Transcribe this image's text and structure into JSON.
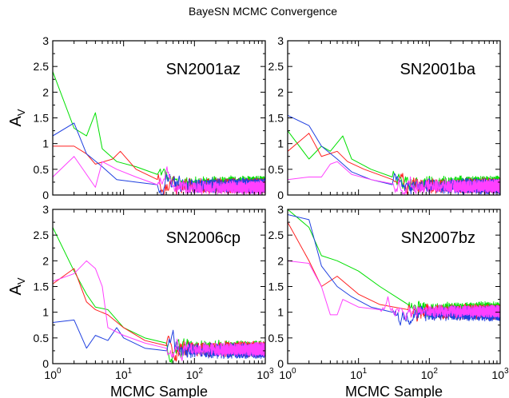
{
  "chart_data": {
    "type": "line",
    "title": "BayeSN MCMC Convergence",
    "xlabel": "MCMC Sample",
    "ylabel": "A",
    "ylabel_subscript": "V",
    "x_scale": "log",
    "xlim": [
      1,
      1000
    ],
    "x_ticks": [
      {
        "value": 1,
        "base": "10",
        "exp": "0"
      },
      {
        "value": 10,
        "base": "10",
        "exp": "1"
      },
      {
        "value": 100,
        "base": "10",
        "exp": "2"
      },
      {
        "value": 1000,
        "base": "10",
        "exp": "3"
      }
    ],
    "grid": false,
    "legend": "none",
    "series_colors": [
      "#00e000",
      "#ff2020",
      "#2040e0",
      "#ff40ff"
    ],
    "panels": [
      {
        "label": "SN2001az",
        "ylim": [
          0,
          3
        ],
        "y_ticks": [
          "0",
          "0.5",
          "1",
          "1.5",
          "2",
          "2.5",
          "3"
        ],
        "series": [
          {
            "color": "#00e000",
            "start": [
              [
                1,
                2.4
              ],
              [
                2,
                1.3
              ],
              [
                3,
                1.15
              ],
              [
                4,
                1.6
              ],
              [
                5,
                0.9
              ],
              [
                8,
                0.65
              ],
              [
                15,
                0.55
              ],
              [
                30,
                0.4
              ]
            ],
            "level": 0.22,
            "noise": 0.1
          },
          {
            "color": "#ff2020",
            "start": [
              [
                1,
                0.95
              ],
              [
                2,
                0.95
              ],
              [
                3,
                0.8
              ],
              [
                4,
                0.6
              ],
              [
                7,
                0.7
              ],
              [
                9,
                0.85
              ],
              [
                15,
                0.5
              ],
              [
                30,
                0.3
              ]
            ],
            "level": 0.18,
            "noise": 0.1
          },
          {
            "color": "#2040e0",
            "start": [
              [
                1,
                1.15
              ],
              [
                2,
                1.4
              ],
              [
                3,
                0.8
              ],
              [
                5,
                0.55
              ],
              [
                8,
                0.3
              ],
              [
                15,
                0.25
              ],
              [
                30,
                0.2
              ]
            ],
            "level": 0.18,
            "noise": 0.1
          },
          {
            "color": "#ff40ff",
            "start": [
              [
                1,
                0.35
              ],
              [
                2,
                0.75
              ],
              [
                3,
                0.4
              ],
              [
                4,
                0.15
              ],
              [
                5,
                0.65
              ],
              [
                8,
                0.5
              ],
              [
                15,
                0.35
              ],
              [
                30,
                0.2
              ]
            ],
            "level": 0.15,
            "noise": 0.09
          }
        ]
      },
      {
        "label": "SN2001ba",
        "ylim": [
          0,
          3
        ],
        "y_ticks": [
          "0",
          "0.5",
          "1",
          "1.5",
          "2",
          "2.5",
          "3"
        ],
        "series": [
          {
            "color": "#00e000",
            "start": [
              [
                1,
                1.25
              ],
              [
                2,
                0.7
              ],
              [
                3,
                0.95
              ],
              [
                4,
                0.85
              ],
              [
                6,
                1.15
              ],
              [
                8,
                0.7
              ],
              [
                15,
                0.5
              ],
              [
                30,
                0.35
              ]
            ],
            "level": 0.22,
            "noise": 0.1
          },
          {
            "color": "#ff2020",
            "start": [
              [
                1,
                0.85
              ],
              [
                2,
                1.2
              ],
              [
                3,
                0.75
              ],
              [
                5,
                0.85
              ],
              [
                7,
                0.65
              ],
              [
                12,
                0.5
              ],
              [
                30,
                0.3
              ]
            ],
            "level": 0.18,
            "noise": 0.1
          },
          {
            "color": "#2040e0",
            "start": [
              [
                1,
                1.55
              ],
              [
                2,
                1.35
              ],
              [
                3,
                0.95
              ],
              [
                5,
                0.7
              ],
              [
                8,
                0.45
              ],
              [
                15,
                0.3
              ],
              [
                30,
                0.2
              ]
            ],
            "level": 0.17,
            "noise": 0.1
          },
          {
            "color": "#ff40ff",
            "start": [
              [
                1,
                0.3
              ],
              [
                2,
                0.35
              ],
              [
                3,
                0.35
              ],
              [
                4,
                0.6
              ],
              [
                5,
                0.65
              ],
              [
                8,
                0.4
              ],
              [
                15,
                0.3
              ],
              [
                30,
                0.22
              ]
            ],
            "level": 0.17,
            "noise": 0.09
          }
        ]
      },
      {
        "label": "SN2006cp",
        "ylim": [
          0,
          3
        ],
        "y_ticks": [
          "0",
          "0.5",
          "1",
          "1.5",
          "2",
          "2.5",
          "3"
        ],
        "series": [
          {
            "color": "#00e000",
            "start": [
              [
                1,
                2.65
              ],
              [
                2,
                1.8
              ],
              [
                3,
                1.35
              ],
              [
                4,
                1.1
              ],
              [
                6,
                1.05
              ],
              [
                10,
                0.7
              ],
              [
                20,
                0.5
              ],
              [
                40,
                0.4
              ]
            ],
            "level": 0.3,
            "noise": 0.1
          },
          {
            "color": "#ff2020",
            "start": [
              [
                1,
                1.55
              ],
              [
                2,
                1.85
              ],
              [
                3,
                1.2
              ],
              [
                4,
                1.05
              ],
              [
                6,
                0.95
              ],
              [
                10,
                0.7
              ],
              [
                20,
                0.45
              ],
              [
                40,
                0.35
              ]
            ],
            "level": 0.28,
            "noise": 0.1
          },
          {
            "color": "#2040e0",
            "start": [
              [
                1,
                0.8
              ],
              [
                2,
                0.85
              ],
              [
                3,
                0.3
              ],
              [
                4,
                0.55
              ],
              [
                6,
                0.45
              ],
              [
                8,
                0.7
              ],
              [
                10,
                0.5
              ],
              [
                20,
                0.3
              ],
              [
                40,
                0.25
              ]
            ],
            "level": 0.25,
            "noise": 0.1
          },
          {
            "color": "#ff40ff",
            "start": [
              [
                1,
                1.6
              ],
              [
                2,
                1.75
              ],
              [
                3,
                2.0
              ],
              [
                4,
                1.85
              ],
              [
                5,
                1.5
              ],
              [
                6,
                0.7
              ],
              [
                10,
                0.55
              ],
              [
                20,
                0.4
              ],
              [
                40,
                0.3
              ]
            ],
            "level": 0.28,
            "noise": 0.09
          }
        ]
      },
      {
        "label": "SN2007bz",
        "ylim": [
          0,
          3
        ],
        "y_ticks": [
          "0",
          "0.5",
          "1",
          "1.5",
          "2",
          "2.5",
          "3"
        ],
        "series": [
          {
            "color": "#00e000",
            "start": [
              [
                1,
                3.0
              ],
              [
                2,
                2.65
              ],
              [
                3,
                2.1
              ],
              [
                5,
                2.0
              ],
              [
                10,
                1.8
              ],
              [
                20,
                1.5
              ],
              [
                50,
                1.15
              ]
            ],
            "level": 1.05,
            "noise": 0.1
          },
          {
            "color": "#ff2020",
            "start": [
              [
                1,
                2.75
              ],
              [
                2,
                2.0
              ],
              [
                3,
                1.5
              ],
              [
                5,
                1.7
              ],
              [
                10,
                1.35
              ],
              [
                20,
                1.15
              ],
              [
                50,
                1.05
              ]
            ],
            "level": 1.0,
            "noise": 0.1
          },
          {
            "color": "#2040e0",
            "start": [
              [
                1,
                2.9
              ],
              [
                2,
                2.8
              ],
              [
                3,
                1.9
              ],
              [
                5,
                1.5
              ],
              [
                8,
                1.3
              ],
              [
                15,
                1.1
              ],
              [
                30,
                1.0
              ]
            ],
            "level": 0.98,
            "noise": 0.1
          },
          {
            "color": "#ff40ff",
            "start": [
              [
                1,
                2.0
              ],
              [
                2,
                1.95
              ],
              [
                3,
                1.5
              ],
              [
                4,
                0.95
              ],
              [
                5,
                0.95
              ],
              [
                6,
                1.25
              ],
              [
                10,
                1.1
              ],
              [
                20,
                1.05
              ]
            ],
            "level": 1.02,
            "noise": 0.08
          }
        ]
      }
    ]
  }
}
